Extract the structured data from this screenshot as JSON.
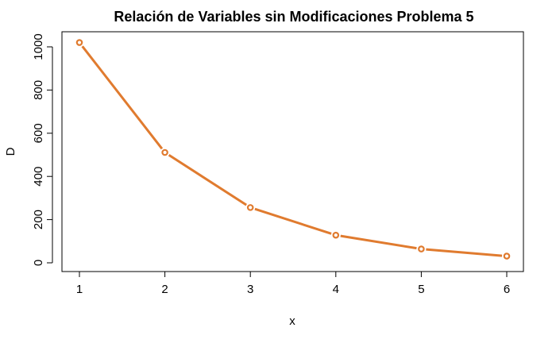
{
  "chart_data": {
    "type": "line",
    "title": "Relación de Variables sin Modificaciones Problema 5",
    "xlabel": "x",
    "ylabel": "D",
    "x": [
      1,
      2,
      3,
      4,
      5,
      6
    ],
    "y": [
      1020,
      511,
      256,
      128,
      64,
      31
    ],
    "xlim": [
      0.8,
      6.2
    ],
    "ylim": [
      0,
      1060
    ],
    "xticks": [
      1,
      2,
      3,
      4,
      5,
      6
    ],
    "yticks": [
      0,
      200,
      400,
      600,
      800,
      1000
    ],
    "series_color": "#e07b2f",
    "marker": "circle-open",
    "grid": false,
    "legend": "none"
  }
}
